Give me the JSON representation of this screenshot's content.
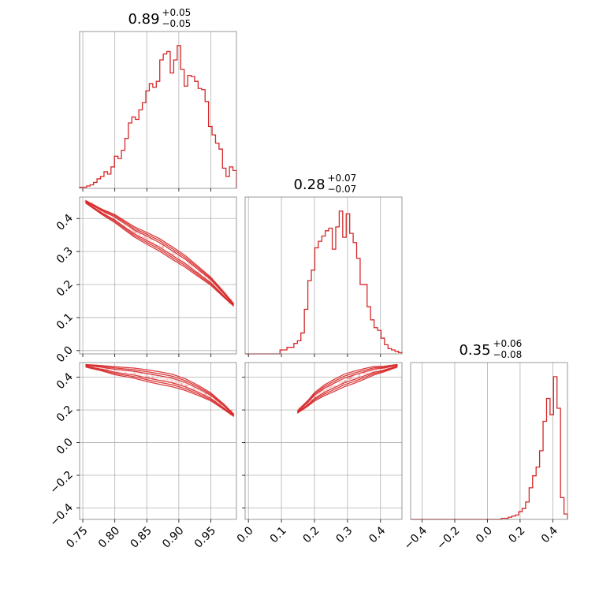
{
  "chart_data": {
    "type": "corner",
    "color": "#d62728",
    "grid": true,
    "titles": [
      {
        "value": "0.89",
        "plus": "+0.05",
        "minus": "−0.05"
      },
      {
        "value": "0.28",
        "plus": "+0.07",
        "minus": "−0.07"
      },
      {
        "value": "0.35",
        "plus": "+0.06",
        "minus": "−0.08"
      }
    ],
    "ranges": [
      [
        0.745,
        0.99
      ],
      [
        -0.01,
        0.465
      ],
      [
        -0.47,
        0.49
      ]
    ],
    "ticks": [
      {
        "values": [
          0.75,
          0.8,
          0.85,
          0.9,
          0.95
        ],
        "labels": [
          "0.75",
          "0.80",
          "0.85",
          "0.90",
          "0.95"
        ]
      },
      {
        "values": [
          0.0,
          0.1,
          0.2,
          0.3,
          0.4
        ],
        "labels": [
          "0.0",
          "0.1",
          "0.2",
          "0.3",
          "0.4"
        ]
      },
      {
        "values": [
          -0.4,
          -0.2,
          0.0,
          0.2,
          0.4
        ],
        "labels": [
          "−0.4",
          "−0.2",
          "0.0",
          "0.2",
          "0.4"
        ]
      }
    ],
    "histograms": [
      {
        "bin_edges_range": [
          0.745,
          0.99
        ],
        "counts": [
          1,
          1,
          2,
          3,
          5,
          8,
          10,
          14,
          12,
          18,
          27,
          25,
          32,
          42,
          55,
          60,
          58,
          66,
          72,
          82,
          88,
          85,
          90,
          108,
          113,
          115,
          97,
          108,
          120,
          100,
          86,
          95,
          94,
          90,
          84,
          83,
          73,
          52,
          45,
          38,
          33,
          17,
          10,
          18,
          15
        ]
      },
      {
        "bin_edges_range": [
          -0.01,
          0.465
        ],
        "counts": [
          0,
          0,
          0,
          0,
          0,
          0,
          0,
          0,
          0,
          0,
          3,
          3,
          5,
          5,
          8,
          10,
          16,
          34,
          56,
          64,
          81,
          86,
          90,
          94,
          96,
          80,
          97,
          109,
          89,
          107,
          92,
          85,
          73,
          53,
          53,
          36,
          26,
          20,
          18,
          12,
          7,
          4,
          3,
          2,
          1
        ]
      },
      {
        "bin_edges_range": [
          -0.47,
          0.49
        ],
        "counts": [
          0,
          0,
          0,
          0,
          0,
          0,
          0,
          0,
          0,
          0,
          0,
          0,
          0,
          0,
          0,
          0,
          0,
          0,
          0,
          0,
          0,
          0,
          0,
          0,
          0,
          0,
          1,
          1,
          2,
          3,
          4,
          7,
          10,
          16,
          29,
          40,
          48,
          63,
          90,
          111,
          96,
          131,
          102,
          20,
          5
        ]
      }
    ],
    "correlations": {
      "x0_x1": [
        [
          0.755,
          0.45
        ],
        [
          0.78,
          0.42
        ],
        [
          0.8,
          0.4
        ],
        [
          0.83,
          0.36
        ],
        [
          0.85,
          0.34
        ],
        [
          0.87,
          0.32
        ],
        [
          0.89,
          0.295
        ],
        [
          0.91,
          0.27
        ],
        [
          0.93,
          0.24
        ],
        [
          0.95,
          0.21
        ],
        [
          0.97,
          0.17
        ],
        [
          0.985,
          0.14
        ]
      ],
      "x0_x2": [
        [
          0.755,
          0.47
        ],
        [
          0.78,
          0.455
        ],
        [
          0.8,
          0.44
        ],
        [
          0.83,
          0.425
        ],
        [
          0.85,
          0.41
        ],
        [
          0.87,
          0.395
        ],
        [
          0.89,
          0.38
        ],
        [
          0.91,
          0.355
        ],
        [
          0.93,
          0.32
        ],
        [
          0.95,
          0.28
        ],
        [
          0.97,
          0.22
        ],
        [
          0.985,
          0.17
        ]
      ],
      "x1_x2": [
        [
          0.15,
          0.19
        ],
        [
          0.18,
          0.24
        ],
        [
          0.2,
          0.28
        ],
        [
          0.23,
          0.32
        ],
        [
          0.26,
          0.35
        ],
        [
          0.29,
          0.38
        ],
        [
          0.32,
          0.4
        ],
        [
          0.35,
          0.42
        ],
        [
          0.38,
          0.44
        ],
        [
          0.41,
          0.45
        ],
        [
          0.45,
          0.47
        ]
      ]
    }
  }
}
